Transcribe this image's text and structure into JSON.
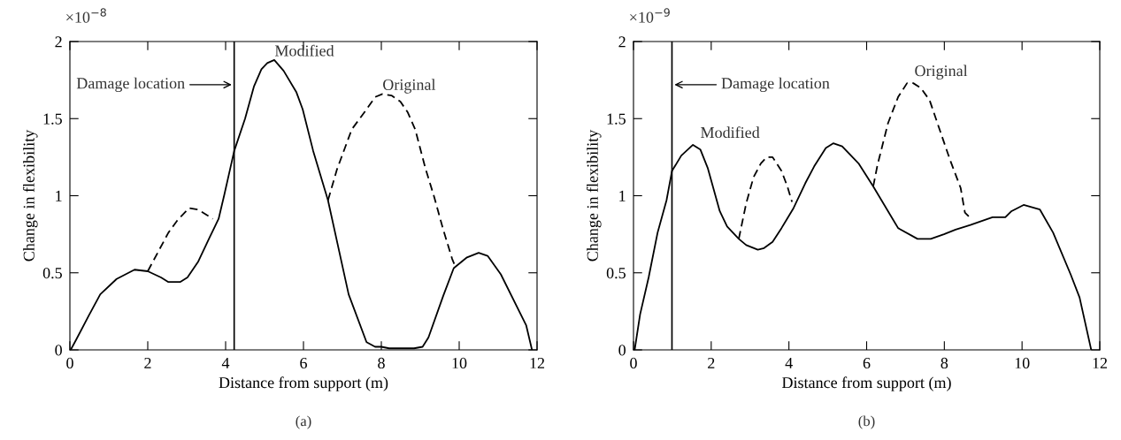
{
  "chart_data": [
    {
      "type": "line",
      "xlabel": "Distance from support (m)",
      "ylabel": "Change in flexibility",
      "xlim": [
        0,
        12
      ],
      "xticks": [
        0,
        2,
        4,
        6,
        8,
        10,
        12
      ],
      "ylim": [
        0,
        2
      ],
      "yticks": [
        0,
        0.5,
        1,
        1.5,
        2
      ],
      "grid": false,
      "marker": "none",
      "annotations": [
        "×10$^{−8}$",
        "(a)"
      ],
      "ref_lines": [
        {
          "axis": "x",
          "value": 4.22,
          "label": "Damage location",
          "color": "#000000"
        }
      ],
      "series": [
        {
          "name": "Modified",
          "color": "#000000",
          "line_style": "solid",
          "x": [
            0.02,
            0.17,
            0.48,
            0.78,
            1.2,
            1.66,
            2.0,
            2.34,
            2.53,
            2.83,
            3.02,
            3.29,
            3.59,
            3.82,
            3.97,
            4.22,
            4.5,
            4.73,
            4.92,
            5.07,
            5.25,
            5.49,
            5.82,
            5.98,
            6.25,
            6.63,
            7.16,
            7.62,
            7.84,
            8.0,
            8.2,
            8.84,
            9.06,
            9.21,
            9.59,
            9.86,
            10.2,
            10.5,
            10.73,
            11.07,
            11.72,
            11.87
          ],
          "values": [
            0,
            0.07,
            0.22,
            0.36,
            0.46,
            0.52,
            0.51,
            0.47,
            0.44,
            0.44,
            0.47,
            0.57,
            0.73,
            0.85,
            1.01,
            1.29,
            1.5,
            1.71,
            1.82,
            1.86,
            1.88,
            1.81,
            1.67,
            1.56,
            1.29,
            0.97,
            0.36,
            0.05,
            0.02,
            0.02,
            0.01,
            0.01,
            0.02,
            0.08,
            0.35,
            0.53,
            0.6,
            0.63,
            0.61,
            0.49,
            0.16,
            0
          ]
        },
        {
          "name": "Original",
          "color": "#000000",
          "line_style": "dashed",
          "x": [
            2.0,
            2.53,
            2.76,
            3.06,
            3.29,
            3.67,
            5.0,
            6.63,
            6.86,
            7.24,
            7.62,
            7.84,
            8.03,
            8.26,
            8.49,
            8.68,
            8.87,
            9.13,
            9.36,
            9.59,
            9.82,
            9.9
          ],
          "values": [
            0.51,
            0.76,
            0.84,
            0.92,
            0.91,
            0.85,
            null,
            0.97,
            1.17,
            1.43,
            1.56,
            1.64,
            1.66,
            1.65,
            1.61,
            1.54,
            1.43,
            1.18,
            0.99,
            0.78,
            0.59,
            0.54
          ]
        }
      ]
    },
    {
      "type": "line",
      "xlabel": "Distance from support (m)",
      "ylabel": "Change in flexibility",
      "xlim": [
        0,
        12
      ],
      "xticks": [
        0,
        2,
        4,
        6,
        8,
        10,
        12
      ],
      "ylim": [
        0,
        2
      ],
      "yticks": [
        0,
        0.5,
        1,
        1.5,
        2
      ],
      "grid": false,
      "marker": "none",
      "annotations": [
        "×10$^{−9}$",
        "(b)"
      ],
      "ref_lines": [
        {
          "axis": "x",
          "value": 0.99,
          "label": "Damage location",
          "color": "#000000"
        }
      ],
      "series": [
        {
          "name": "Modified",
          "color": "#000000",
          "line_style": "solid",
          "x": [
            0.03,
            0.17,
            0.39,
            0.62,
            0.85,
            0.99,
            1.23,
            1.53,
            1.72,
            1.91,
            2.22,
            2.41,
            2.71,
            2.9,
            3.2,
            3.36,
            3.58,
            3.81,
            4.12,
            4.42,
            4.65,
            4.95,
            5.14,
            5.37,
            5.79,
            6.17,
            6.81,
            7.31,
            7.65,
            7.99,
            8.29,
            8.67,
            9.24,
            9.57,
            9.73,
            10.04,
            10.46,
            10.8,
            11.25,
            11.48,
            11.78
          ],
          "values": [
            0,
            0.23,
            0.47,
            0.76,
            0.97,
            1.16,
            1.26,
            1.33,
            1.3,
            1.18,
            0.9,
            0.8,
            0.72,
            0.68,
            0.65,
            0.66,
            0.7,
            0.79,
            0.92,
            1.08,
            1.19,
            1.31,
            1.34,
            1.32,
            1.21,
            1.06,
            0.79,
            0.72,
            0.72,
            0.75,
            0.78,
            0.81,
            0.86,
            0.86,
            0.9,
            0.94,
            0.91,
            0.76,
            0.49,
            0.34,
            0
          ]
        },
        {
          "name": "Original",
          "color": "#000000",
          "line_style": "dashed",
          "x": [
            2.71,
            2.9,
            3.09,
            3.28,
            3.43,
            3.58,
            3.81,
            3.96,
            4.08,
            5.0,
            6.17,
            6.28,
            6.55,
            6.81,
            7.04,
            7.2,
            7.39,
            7.62,
            7.85,
            8.15,
            8.42,
            8.53,
            8.69
          ],
          "values": [
            0.72,
            0.95,
            1.12,
            1.21,
            1.25,
            1.25,
            1.16,
            1.06,
            0.96,
            null,
            1.06,
            1.2,
            1.47,
            1.64,
            1.73,
            1.73,
            1.7,
            1.62,
            1.45,
            1.23,
            1.05,
            0.89,
            0.85
          ]
        }
      ]
    }
  ]
}
